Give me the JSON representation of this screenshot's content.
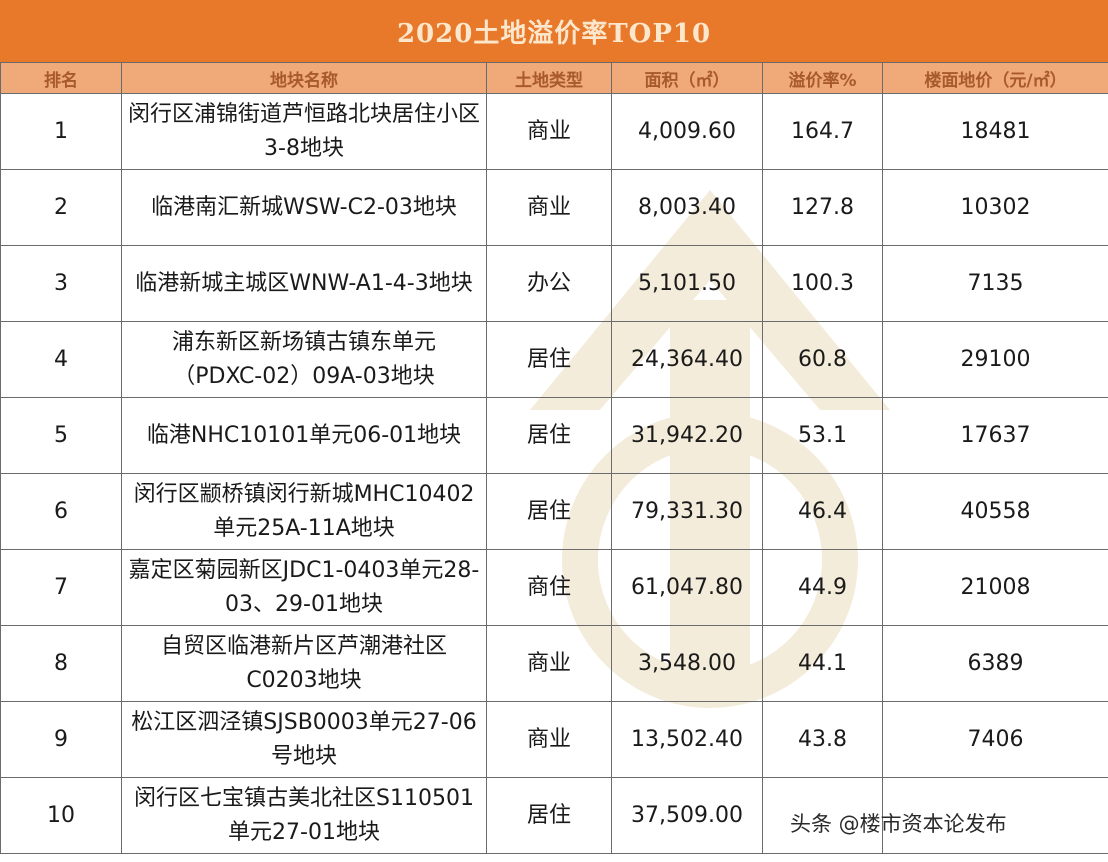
{
  "title": "2020土地溢价率TOP10",
  "columns": [
    "排名",
    "地块名称",
    "土地类型",
    "面积（㎡）",
    "溢价率%",
    "楼面地价（元/㎡）"
  ],
  "rows": [
    {
      "rank": "1",
      "name": "闵行区浦锦街道芦恒路北块居住小区3-8地块",
      "type": "商业",
      "area": "4,009.60",
      "premium": "164.7",
      "price": "18481"
    },
    {
      "rank": "2",
      "name": "临港南汇新城WSW-C2-03地块",
      "type": "商业",
      "area": "8,003.40",
      "premium": "127.8",
      "price": "10302"
    },
    {
      "rank": "3",
      "name": "临港新城主城区WNW-A1-4-3地块",
      "type": "办公",
      "area": "5,101.50",
      "premium": "100.3",
      "price": "7135"
    },
    {
      "rank": "4",
      "name": "浦东新区新场镇古镇东单元（PDXC-02）09A-03地块",
      "type": "居住",
      "area": "24,364.40",
      "premium": "60.8",
      "price": "29100"
    },
    {
      "rank": "5",
      "name": "临港NHC10101单元06-01地块",
      "type": "居住",
      "area": "31,942.20",
      "premium": "53.1",
      "price": "17637"
    },
    {
      "rank": "6",
      "name": "闵行区颛桥镇闵行新城MHC10402单元25A-11A地块",
      "type": "居住",
      "area": "79,331.30",
      "premium": "46.4",
      "price": "40558"
    },
    {
      "rank": "7",
      "name": "嘉定区菊园新区JDC1-0403单元28-03、29-01地块",
      "type": "商住",
      "area": "61,047.80",
      "premium": "44.9",
      "price": "21008"
    },
    {
      "rank": "8",
      "name": "自贸区临港新片区芦潮港社区C0203地块",
      "type": "商业",
      "area": "3,548.00",
      "premium": "44.1",
      "price": "6389"
    },
    {
      "rank": "9",
      "name": "松江区泗泾镇SJSB0003单元27-06号地块",
      "type": "商业",
      "area": "13,502.40",
      "premium": "43.8",
      "price": "7406"
    },
    {
      "rank": "10",
      "name": "闵行区七宝镇古美北社区S110501单元27-01地块",
      "type": "居住",
      "area": "37,509.00",
      "premium": "",
      "price": ""
    }
  ],
  "watermark_text": "头条 @楼市资本论发布",
  "colors": {
    "title_bg": "#e8782a",
    "header_bg": "#f0a978",
    "header_text": "#a85a2c"
  }
}
